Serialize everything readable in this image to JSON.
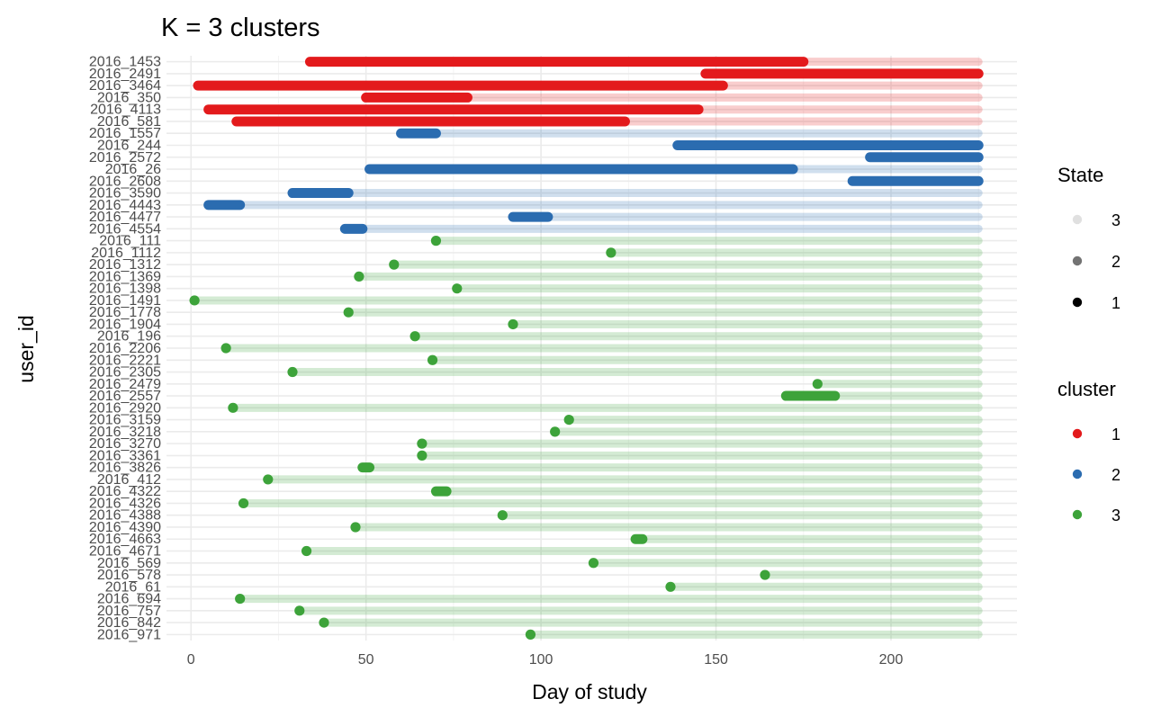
{
  "chart_data": {
    "type": "scatter",
    "title": "K = 3 clusters",
    "xlabel": "Day of study",
    "ylabel": "user_id",
    "xlim": [
      -7,
      236
    ],
    "xticks": [
      0,
      50,
      100,
      150,
      200
    ],
    "study_end": 225,
    "grid": true,
    "legend_placement": "right",
    "colors": {
      "1": "#e31a1c",
      "2": "#2b6cb0",
      "3": "#3da33a"
    },
    "state_legend": {
      "title": "State",
      "labels": [
        "3",
        "2",
        "1"
      ]
    },
    "cluster_legend": {
      "title": "cluster",
      "labels": [
        "1",
        "2",
        "3"
      ]
    },
    "users": [
      {
        "id": "2016_971",
        "cluster": 3,
        "active": [
          [
            97,
            97
          ]
        ]
      },
      {
        "id": "2016_842",
        "cluster": 3,
        "active": [
          [
            38,
            38
          ]
        ]
      },
      {
        "id": "2016_757",
        "cluster": 3,
        "active": [
          [
            31,
            31
          ]
        ]
      },
      {
        "id": "2016_694",
        "cluster": 3,
        "active": [
          [
            14,
            14
          ]
        ]
      },
      {
        "id": "2016_61",
        "cluster": 3,
        "active": [
          [
            137,
            137
          ]
        ]
      },
      {
        "id": "2016_578",
        "cluster": 3,
        "active": [
          [
            164,
            164
          ]
        ]
      },
      {
        "id": "2016_569",
        "cluster": 3,
        "active": [
          [
            115,
            115
          ]
        ]
      },
      {
        "id": "2016_4671",
        "cluster": 3,
        "active": [
          [
            33,
            33
          ]
        ]
      },
      {
        "id": "2016_4663",
        "cluster": 3,
        "active": [
          [
            127,
            129
          ]
        ]
      },
      {
        "id": "2016_4390",
        "cluster": 3,
        "active": [
          [
            47,
            47
          ]
        ]
      },
      {
        "id": "2016_4388",
        "cluster": 3,
        "active": [
          [
            89,
            89
          ]
        ]
      },
      {
        "id": "2016_4326",
        "cluster": 3,
        "active": [
          [
            15,
            15
          ]
        ]
      },
      {
        "id": "2016_4322",
        "cluster": 3,
        "active": [
          [
            70,
            73
          ]
        ]
      },
      {
        "id": "2016_412",
        "cluster": 3,
        "active": [
          [
            22,
            22
          ]
        ]
      },
      {
        "id": "2016_3826",
        "cluster": 3,
        "active": [
          [
            49,
            51
          ]
        ]
      },
      {
        "id": "2016_3361",
        "cluster": 3,
        "active": [
          [
            66,
            66
          ]
        ]
      },
      {
        "id": "2016_3270",
        "cluster": 3,
        "active": [
          [
            66,
            66
          ]
        ]
      },
      {
        "id": "2016_3218",
        "cluster": 3,
        "active": [
          [
            104,
            104
          ]
        ]
      },
      {
        "id": "2016_3159",
        "cluster": 3,
        "active": [
          [
            108,
            108
          ]
        ]
      },
      {
        "id": "2016_2920",
        "cluster": 3,
        "active": [
          [
            12,
            12
          ]
        ]
      },
      {
        "id": "2016_2557",
        "cluster": 3,
        "active": [
          [
            170,
            184
          ]
        ]
      },
      {
        "id": "2016_2479",
        "cluster": 3,
        "active": [
          [
            179,
            179
          ]
        ]
      },
      {
        "id": "2016_2305",
        "cluster": 3,
        "active": [
          [
            29,
            29
          ]
        ]
      },
      {
        "id": "2016_2221",
        "cluster": 3,
        "active": [
          [
            69,
            69
          ]
        ]
      },
      {
        "id": "2016_2206",
        "cluster": 3,
        "active": [
          [
            10,
            10
          ]
        ]
      },
      {
        "id": "2016_196",
        "cluster": 3,
        "active": [
          [
            64,
            64
          ]
        ]
      },
      {
        "id": "2016_1904",
        "cluster": 3,
        "active": [
          [
            92,
            92
          ]
        ]
      },
      {
        "id": "2016_1778",
        "cluster": 3,
        "active": [
          [
            45,
            45
          ]
        ]
      },
      {
        "id": "2016_1491",
        "cluster": 3,
        "active": [
          [
            1,
            1
          ]
        ]
      },
      {
        "id": "2016_1398",
        "cluster": 3,
        "active": [
          [
            76,
            76
          ]
        ]
      },
      {
        "id": "2016_1369",
        "cluster": 3,
        "active": [
          [
            48,
            48
          ]
        ]
      },
      {
        "id": "2016_1312",
        "cluster": 3,
        "active": [
          [
            58,
            58
          ]
        ]
      },
      {
        "id": "2016_1112",
        "cluster": 3,
        "active": [
          [
            120,
            120
          ]
        ]
      },
      {
        "id": "2016_111",
        "cluster": 3,
        "active": [
          [
            70,
            70
          ]
        ]
      },
      {
        "id": "2016_4554",
        "cluster": 2,
        "active": [
          [
            44,
            49
          ]
        ]
      },
      {
        "id": "2016_4477",
        "cluster": 2,
        "active": [
          [
            92,
            102
          ]
        ]
      },
      {
        "id": "2016_4443",
        "cluster": 2,
        "active": [
          [
            5,
            14
          ]
        ]
      },
      {
        "id": "2016_3590",
        "cluster": 2,
        "active": [
          [
            29,
            45
          ]
        ]
      },
      {
        "id": "2016_2608",
        "cluster": 2,
        "active": [
          [
            189,
            225
          ]
        ]
      },
      {
        "id": "2016_26",
        "cluster": 2,
        "active": [
          [
            51,
            172
          ]
        ]
      },
      {
        "id": "2016_2572",
        "cluster": 2,
        "active": [
          [
            194,
            225
          ]
        ]
      },
      {
        "id": "2016_244",
        "cluster": 2,
        "active": [
          [
            139,
            225
          ]
        ]
      },
      {
        "id": "2016_1557",
        "cluster": 2,
        "active": [
          [
            60,
            70
          ]
        ]
      },
      {
        "id": "2016_581",
        "cluster": 1,
        "active": [
          [
            13,
            124
          ]
        ]
      },
      {
        "id": "2016_4113",
        "cluster": 1,
        "active": [
          [
            5,
            145
          ]
        ]
      },
      {
        "id": "2016_350",
        "cluster": 1,
        "active": [
          [
            50,
            79
          ]
        ]
      },
      {
        "id": "2016_3464",
        "cluster": 1,
        "active": [
          [
            2,
            152
          ]
        ]
      },
      {
        "id": "2016_2491",
        "cluster": 1,
        "active": [
          [
            147,
            225
          ]
        ]
      },
      {
        "id": "2016_1453",
        "cluster": 1,
        "active": [
          [
            34,
            175
          ]
        ]
      }
    ]
  }
}
